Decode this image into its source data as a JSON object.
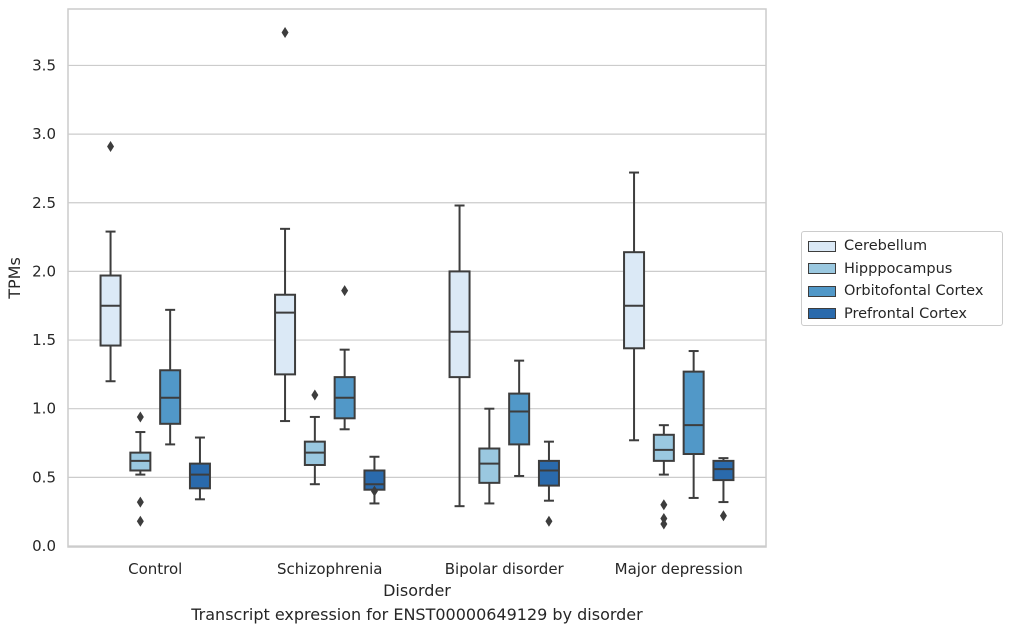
{
  "chart_data": {
    "type": "box",
    "title": "",
    "xlabel": "Disorder",
    "ylabel": "TPMs",
    "ylim": [
      0,
      3.9
    ],
    "yticks": [
      "0.0",
      "0.5",
      "1.0",
      "1.5",
      "2.0",
      "2.5",
      "3.0",
      "3.5"
    ],
    "ytick_values": [
      0,
      0.5,
      1.0,
      1.5,
      2.0,
      2.5,
      3.0,
      3.5
    ],
    "categories": [
      "Control",
      "Schizophrenia",
      "Bipolar disorder",
      "Major depression"
    ],
    "grid": "horizontal",
    "legend_position": "right",
    "series": [
      {
        "name": "Cerebellum",
        "color": "#dbe9f6",
        "boxes": [
          {
            "whislo": 1.2,
            "q1": 1.46,
            "med": 1.75,
            "q3": 1.97,
            "whishi": 2.29,
            "fliers": [
              2.91
            ]
          },
          {
            "whislo": 0.91,
            "q1": 1.25,
            "med": 1.7,
            "q3": 1.83,
            "whishi": 2.31,
            "fliers": [
              3.74
            ]
          },
          {
            "whislo": 0.29,
            "q1": 1.23,
            "med": 1.56,
            "q3": 2.0,
            "whishi": 2.48,
            "fliers": []
          },
          {
            "whislo": 0.77,
            "q1": 1.44,
            "med": 1.75,
            "q3": 2.14,
            "whishi": 2.72,
            "fliers": []
          }
        ]
      },
      {
        "name": "Hipppocampus",
        "color": "#9ac8e0",
        "boxes": [
          {
            "whislo": 0.52,
            "q1": 0.55,
            "med": 0.62,
            "q3": 0.68,
            "whishi": 0.83,
            "fliers": [
              0.94,
              0.32,
              0.18
            ]
          },
          {
            "whislo": 0.45,
            "q1": 0.59,
            "med": 0.68,
            "q3": 0.76,
            "whishi": 0.94,
            "fliers": [
              1.1
            ]
          },
          {
            "whislo": 0.31,
            "q1": 0.46,
            "med": 0.6,
            "q3": 0.71,
            "whishi": 1.0,
            "fliers": []
          },
          {
            "whislo": 0.52,
            "q1": 0.62,
            "med": 0.7,
            "q3": 0.81,
            "whishi": 0.88,
            "fliers": [
              0.3,
              0.2,
              0.16
            ]
          }
        ]
      },
      {
        "name": "Orbitofontal Cortex",
        "color": "#5198c8",
        "boxes": [
          {
            "whislo": 0.74,
            "q1": 0.89,
            "med": 1.08,
            "q3": 1.28,
            "whishi": 1.72,
            "fliers": []
          },
          {
            "whislo": 0.85,
            "q1": 0.93,
            "med": 1.08,
            "q3": 1.23,
            "whishi": 1.43,
            "fliers": [
              1.86
            ]
          },
          {
            "whislo": 0.51,
            "q1": 0.74,
            "med": 0.98,
            "q3": 1.11,
            "whishi": 1.35,
            "fliers": []
          },
          {
            "whislo": 0.35,
            "q1": 0.67,
            "med": 0.88,
            "q3": 1.27,
            "whishi": 1.42,
            "fliers": []
          }
        ]
      },
      {
        "name": "Prefrontal Cortex",
        "color": "#2a6aac",
        "boxes": [
          {
            "whislo": 0.34,
            "q1": 0.42,
            "med": 0.52,
            "q3": 0.6,
            "whishi": 0.79,
            "fliers": []
          },
          {
            "whislo": 0.31,
            "q1": 0.41,
            "med": 0.45,
            "q3": 0.55,
            "whishi": 0.65,
            "fliers": [
              0.4
            ]
          },
          {
            "whislo": 0.33,
            "q1": 0.44,
            "med": 0.55,
            "q3": 0.62,
            "whishi": 0.76,
            "fliers": [
              0.18
            ]
          },
          {
            "whislo": 0.32,
            "q1": 0.48,
            "med": 0.56,
            "q3": 0.62,
            "whishi": 0.64,
            "fliers": [
              0.22
            ]
          }
        ]
      }
    ]
  },
  "caption": "Transcript expression for ENST00000649129 by disorder"
}
